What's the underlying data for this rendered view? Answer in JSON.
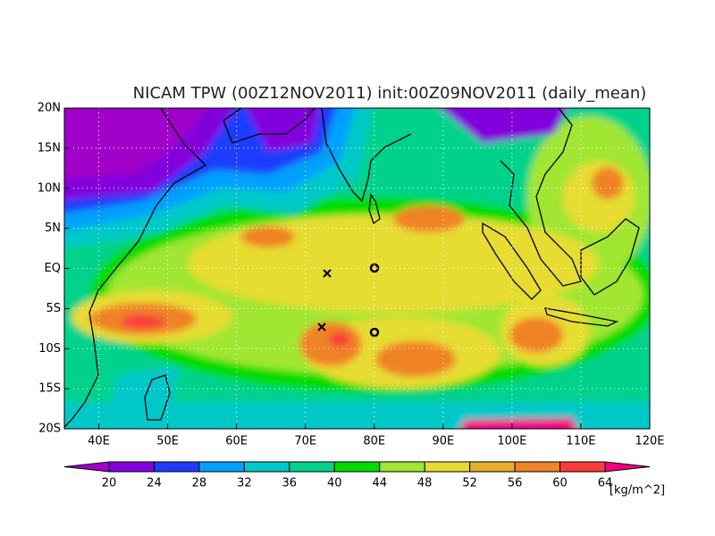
{
  "chart_data": {
    "type": "map",
    "title": "NICAM TPW (00Z12NOV2011) init:00Z09NOV2011 (daily_mean)",
    "xlim": [
      35,
      120
    ],
    "ylim": [
      -20,
      20
    ],
    "xticks": [
      {
        "value": 40,
        "label": "40E"
      },
      {
        "value": 50,
        "label": "50E"
      },
      {
        "value": 60,
        "label": "60E"
      },
      {
        "value": 70,
        "label": "70E"
      },
      {
        "value": 80,
        "label": "80E"
      },
      {
        "value": 90,
        "label": "90E"
      },
      {
        "value": 100,
        "label": "100E"
      },
      {
        "value": 110,
        "label": "110E"
      },
      {
        "value": 120,
        "label": "120E"
      }
    ],
    "yticks": [
      {
        "value": 20,
        "label": "20N"
      },
      {
        "value": 15,
        "label": "15N"
      },
      {
        "value": 10,
        "label": "10N"
      },
      {
        "value": 5,
        "label": "5N"
      },
      {
        "value": 0,
        "label": "EQ"
      },
      {
        "value": -5,
        "label": "5S"
      },
      {
        "value": -10,
        "label": "10S"
      },
      {
        "value": -15,
        "label": "15S"
      },
      {
        "value": -20,
        "label": "20S"
      }
    ],
    "grid": true,
    "colorbar": {
      "levels": [
        20,
        24,
        28,
        32,
        36,
        40,
        44,
        48,
        52,
        56,
        60,
        64
      ],
      "colors": [
        "#a000c8",
        "#8200dc",
        "#1e3cff",
        "#00a0ff",
        "#00c8c8",
        "#00d28c",
        "#00dc00",
        "#a0e632",
        "#e6dc32",
        "#e6af2d",
        "#f08228",
        "#fa3c3c",
        "#f00082"
      ],
      "unit": "[kg/m^2]"
    }
  }
}
